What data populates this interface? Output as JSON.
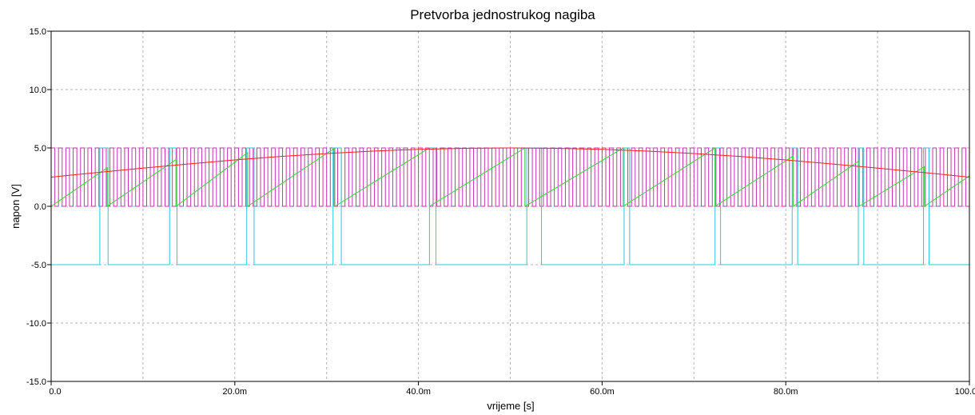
{
  "chart_data": {
    "type": "line",
    "title": "Pretvorba jednostrukog nagiba",
    "xlabel": "vrijeme [s]",
    "ylabel": "napon [V]",
    "xlim": [
      0,
      0.1
    ],
    "ylim": [
      -15,
      15
    ],
    "x_ticks": [
      0,
      0.02,
      0.04,
      0.06,
      0.08,
      0.1
    ],
    "x_tick_labels": [
      "0.0",
      "20.0m",
      "40.0m",
      "60.0m",
      "80.0m",
      "100.0m"
    ],
    "y_ticks": [
      15,
      10,
      5,
      0,
      -5,
      -10,
      -15
    ],
    "y_tick_labels": [
      "15.0",
      "10.0",
      "5.0",
      "0.0",
      "-5.0",
      "-10.0",
      "-15.0"
    ],
    "grid": true,
    "legend": "none",
    "colors": {
      "clock": "#c832b4",
      "ramp": "#32dc32",
      "signal": "#ff2020",
      "comparator": "#28c8dc",
      "grid": "#b4b4b4",
      "frame": "#000000"
    },
    "series": [
      {
        "color": "#ff2020",
        "description": "input sine, offset 2.5 V, amplitude 2.5 V, period 0.1 s",
        "x": [
          0,
          0.005,
          0.01,
          0.015,
          0.02,
          0.025,
          0.03,
          0.035,
          0.04,
          0.045,
          0.05,
          0.055,
          0.06,
          0.065,
          0.07,
          0.075,
          0.08,
          0.085,
          0.09,
          0.095,
          0.1
        ],
        "values": [
          2.5,
          2.89,
          3.27,
          3.63,
          3.97,
          4.27,
          4.52,
          4.73,
          4.88,
          4.97,
          5.0,
          4.97,
          4.88,
          4.73,
          4.52,
          4.27,
          3.97,
          3.63,
          3.27,
          2.89,
          2.5
        ]
      },
      {
        "color": "#32dc32",
        "description": "ramp (sawtooth) reset at each conversion end",
        "x": [
          0,
          0.0061,
          0.0061,
          0.0136,
          0.0136,
          0.0214,
          0.0214,
          0.0309,
          0.0309,
          0.0412,
          0.0412,
          0.0516,
          0.0516,
          0.0623,
          0.0623,
          0.0723,
          0.0723,
          0.0808,
          0.0808,
          0.088,
          0.088,
          0.0951,
          0.0951,
          0.1
        ],
        "values": [
          0,
          3.3,
          0,
          4.0,
          0,
          4.6,
          0,
          5.0,
          0,
          5.0,
          0,
          5.0,
          0,
          5.0,
          0,
          5.0,
          0,
          4.3,
          0,
          3.9,
          0,
          3.4,
          0,
          2.6
        ]
      },
      {
        "color": "#c832b4",
        "description": "clock pulses 0-5 V",
        "period": 0.0008,
        "low": 0,
        "high": 5
      },
      {
        "color": "#28c8dc",
        "description": "comparator output, -5 V low / +5 V high",
        "low": -5,
        "high": 5,
        "high_intervals": [
          [
            0.0053,
            0.0062
          ],
          [
            0.0129,
            0.0137
          ],
          [
            0.0213,
            0.0221
          ],
          [
            0.0307,
            0.0316
          ],
          [
            0.0412,
            0.0419
          ],
          [
            0.0518,
            0.0534
          ],
          [
            0.0624,
            0.063
          ],
          [
            0.0723,
            0.0729
          ],
          [
            0.0807,
            0.0813
          ],
          [
            0.0879,
            0.0885
          ],
          [
            0.095,
            0.0956
          ]
        ]
      }
    ]
  }
}
